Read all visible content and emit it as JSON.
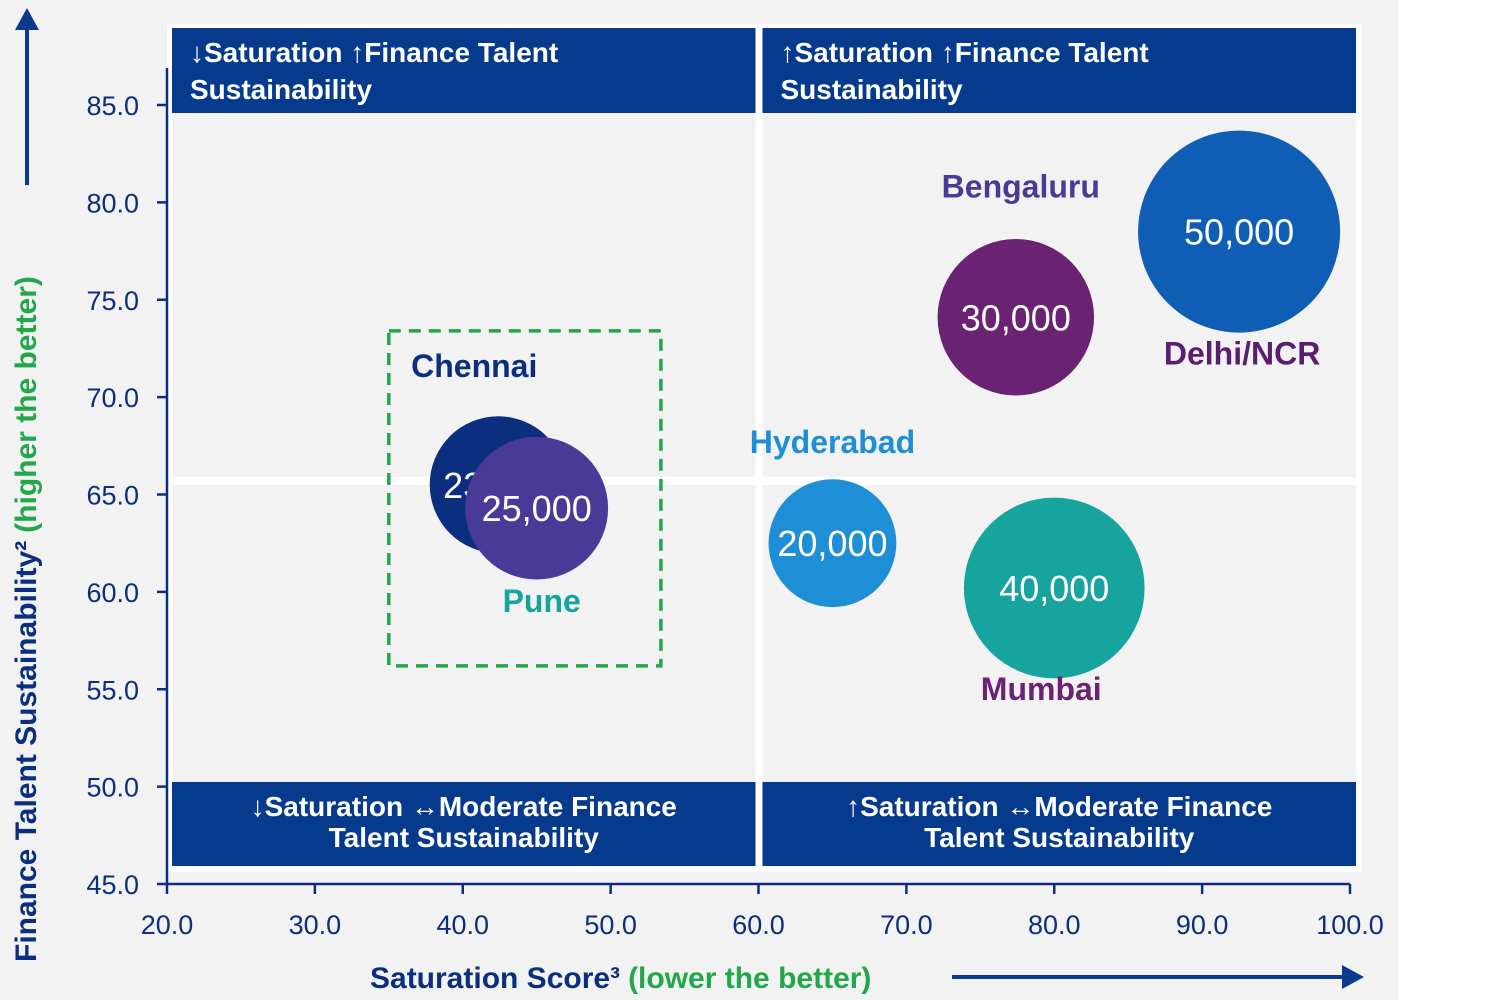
{
  "chart_data": {
    "type": "bubble",
    "title": "",
    "xlabel": "Saturation Score³",
    "xlabel_note": "(lower the better)",
    "ylabel": "Finance Talent Sustainability²",
    "ylabel_note": "(higher the better)",
    "xlim": [
      20,
      100
    ],
    "ylim": [
      45,
      85
    ],
    "x_ticks": [
      "20.0",
      "30.0",
      "40.0",
      "50.0",
      "60.0",
      "70.0",
      "80.0",
      "90.0",
      "100.0"
    ],
    "y_ticks": [
      "45.0",
      "50.0",
      "55.0",
      "60.0",
      "65.0",
      "70.0",
      "75.0",
      "80.0",
      "85.0"
    ],
    "quadrant_dividers": {
      "x": 60,
      "y": 65.7
    },
    "grid": false,
    "quadrants": [
      {
        "position": "top-left",
        "label": "↓Saturation ↑Finance Talent Sustainability"
      },
      {
        "position": "top-right",
        "label": "↑Saturation ↑Finance Talent Sustainability"
      },
      {
        "position": "bottom-left",
        "label": "↓Saturation ↔Moderate Finance Talent Sustainability"
      },
      {
        "position": "bottom-right",
        "label": "↑Saturation ↔Moderate Finance Talent Sustainability"
      }
    ],
    "points": [
      {
        "name": "Chennai",
        "x": 42.4,
        "y": 65.5,
        "size": 23000,
        "size_label": "23,000",
        "color": "#0b2f7e",
        "label_color": "#0b2f7e"
      },
      {
        "name": "Pune",
        "x": 45.0,
        "y": 64.3,
        "size": 25000,
        "size_label": "25,000",
        "color": "#4a3a98",
        "label_color": "#17a39e"
      },
      {
        "name": "Hyderabad",
        "x": 65.0,
        "y": 62.5,
        "size": 20000,
        "size_label": "20,000",
        "color": "#1e8fd6",
        "label_color": "#1e8fd6"
      },
      {
        "name": "Mumbai",
        "x": 80.0,
        "y": 60.2,
        "size": 40000,
        "size_label": "40,000",
        "color": "#17a39e",
        "label_color": "#6a2273"
      },
      {
        "name": "Bengaluru",
        "x": 77.4,
        "y": 74.1,
        "size": 30000,
        "size_label": "30,000",
        "color": "#6a2273",
        "label_color": "#4a3a98"
      },
      {
        "name": "Delhi/NCR",
        "x": 92.5,
        "y": 78.5,
        "size": 50000,
        "size_label": "50,000",
        "color": "#0f5db5",
        "label_color": "#5a1e6e"
      }
    ],
    "highlight_box": {
      "x": [
        35.0,
        53.4
      ],
      "y": [
        56.2,
        73.4
      ],
      "color": "#22a84a",
      "style": "dashed"
    },
    "colors": {
      "axis": "#0b2f7e",
      "quadrant_header": "#063a8c",
      "note": "#22a84a",
      "background": "#f2f2f2"
    }
  }
}
